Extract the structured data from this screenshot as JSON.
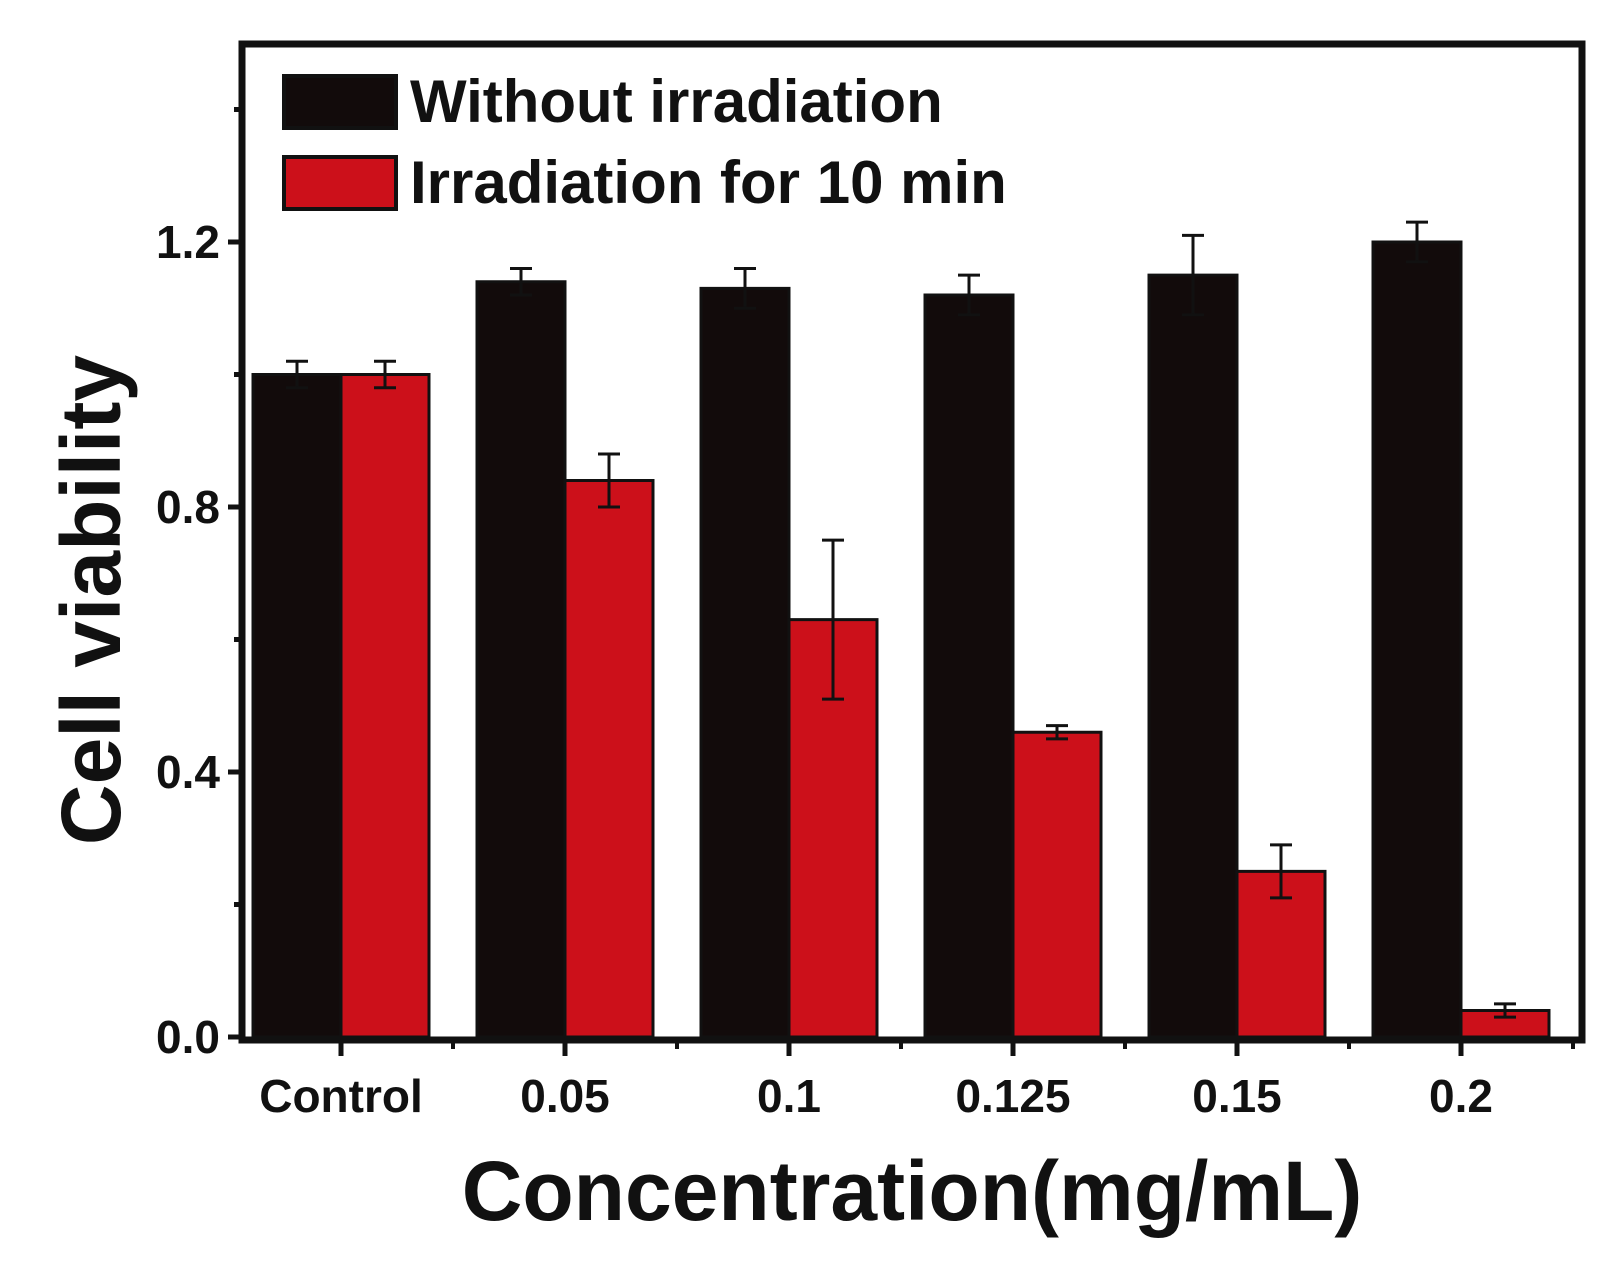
{
  "chart_data": {
    "type": "bar",
    "title": "",
    "xlabel": "Concentration(mg/mL)",
    "ylabel": "Cell viability",
    "ylim": [
      0,
      1.5
    ],
    "yticks": [
      "0.0",
      "0.4",
      "0.8",
      "1.2"
    ],
    "yticks_values": [
      0.0,
      0.4,
      0.8,
      1.2
    ],
    "categories": [
      "Control",
      "0.05",
      "0.1",
      "0.125",
      "0.15",
      "0.2"
    ],
    "legend_position": "top-left",
    "series": [
      {
        "name": "Without irradiation",
        "color": "#120b0b",
        "values": [
          1.0,
          1.14,
          1.13,
          1.12,
          1.15,
          1.2
        ],
        "errors": [
          0.02,
          0.02,
          0.03,
          0.03,
          0.06,
          0.03
        ]
      },
      {
        "name": "Irradiation for 10 min",
        "color": "#cc101a",
        "values": [
          1.0,
          0.84,
          0.63,
          0.46,
          0.25,
          0.04
        ],
        "errors": [
          0.02,
          0.04,
          0.12,
          0.01,
          0.04,
          0.01
        ]
      }
    ]
  }
}
